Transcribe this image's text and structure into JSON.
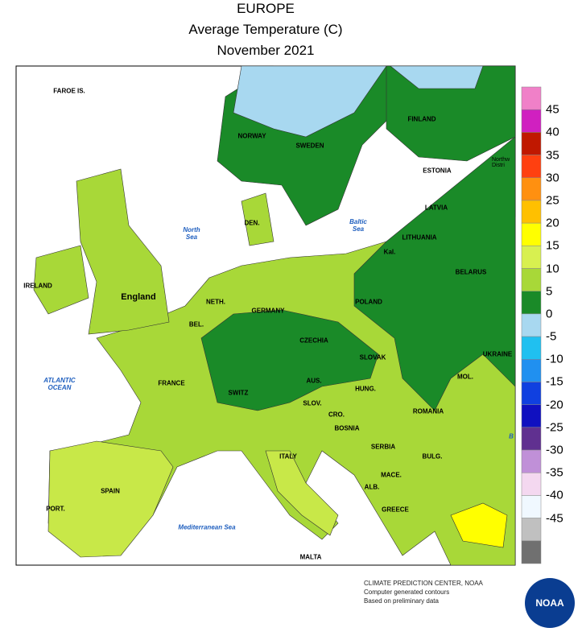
{
  "header": {
    "title": "EUROPE",
    "subtitle": "Average Temperature (C)",
    "period": "November 2021"
  },
  "map": {
    "labels": [
      "FAROE IS.",
      "NORWAY",
      "SWEDEN",
      "FINLAND",
      "ESTONIA",
      "LATVIA",
      "LITHUANIA",
      "Kal.",
      "BELARUS",
      "DEN.",
      "IRELAND",
      "England",
      "NETH.",
      "GERMANY",
      "POLAND",
      "BEL.",
      "CZECHIA",
      "SLOVAK",
      "UKRAINE",
      "AUS.",
      "HUNG.",
      "MOL.",
      "FRANCE",
      "SWITZ",
      "SLOV.",
      "ROMANIA",
      "CRO.",
      "BOSNIA",
      "SERBIA",
      "BULG.",
      "ITALY",
      "MACE.",
      "SPAIN",
      "ALB.",
      "PORT.",
      "GREECE",
      "MALTA",
      "Northw Distri"
    ],
    "water_labels": [
      "North Sea",
      "Baltic Sea",
      "ATLANTIC OCEAN",
      "Mediterranean Sea",
      "B"
    ]
  },
  "legend": {
    "ticks": [
      45,
      40,
      35,
      30,
      25,
      20,
      15,
      10,
      5,
      0,
      -5,
      -10,
      -15,
      -20,
      -25,
      -30,
      -35,
      -40,
      -45
    ],
    "colors": [
      "#f080c8",
      "#d020c0",
      "#c01800",
      "#ff4010",
      "#ff9010",
      "#ffc000",
      "#ffff00",
      "#d8f050",
      "#a8d838",
      "#1a8a28",
      "#a8d8f0",
      "#20c0f0",
      "#2090f0",
      "#1040e0",
      "#1010c0",
      "#603090",
      "#c090d8",
      "#f4d8f0",
      "#f0f8ff",
      "#c0c0c0",
      "#707070"
    ]
  },
  "footer": {
    "source": "CLIMATE PREDICTION CENTER, NOAA",
    "note1": "Computer generated contours",
    "note2": "Based on preliminary data",
    "logo": "NOAA"
  }
}
